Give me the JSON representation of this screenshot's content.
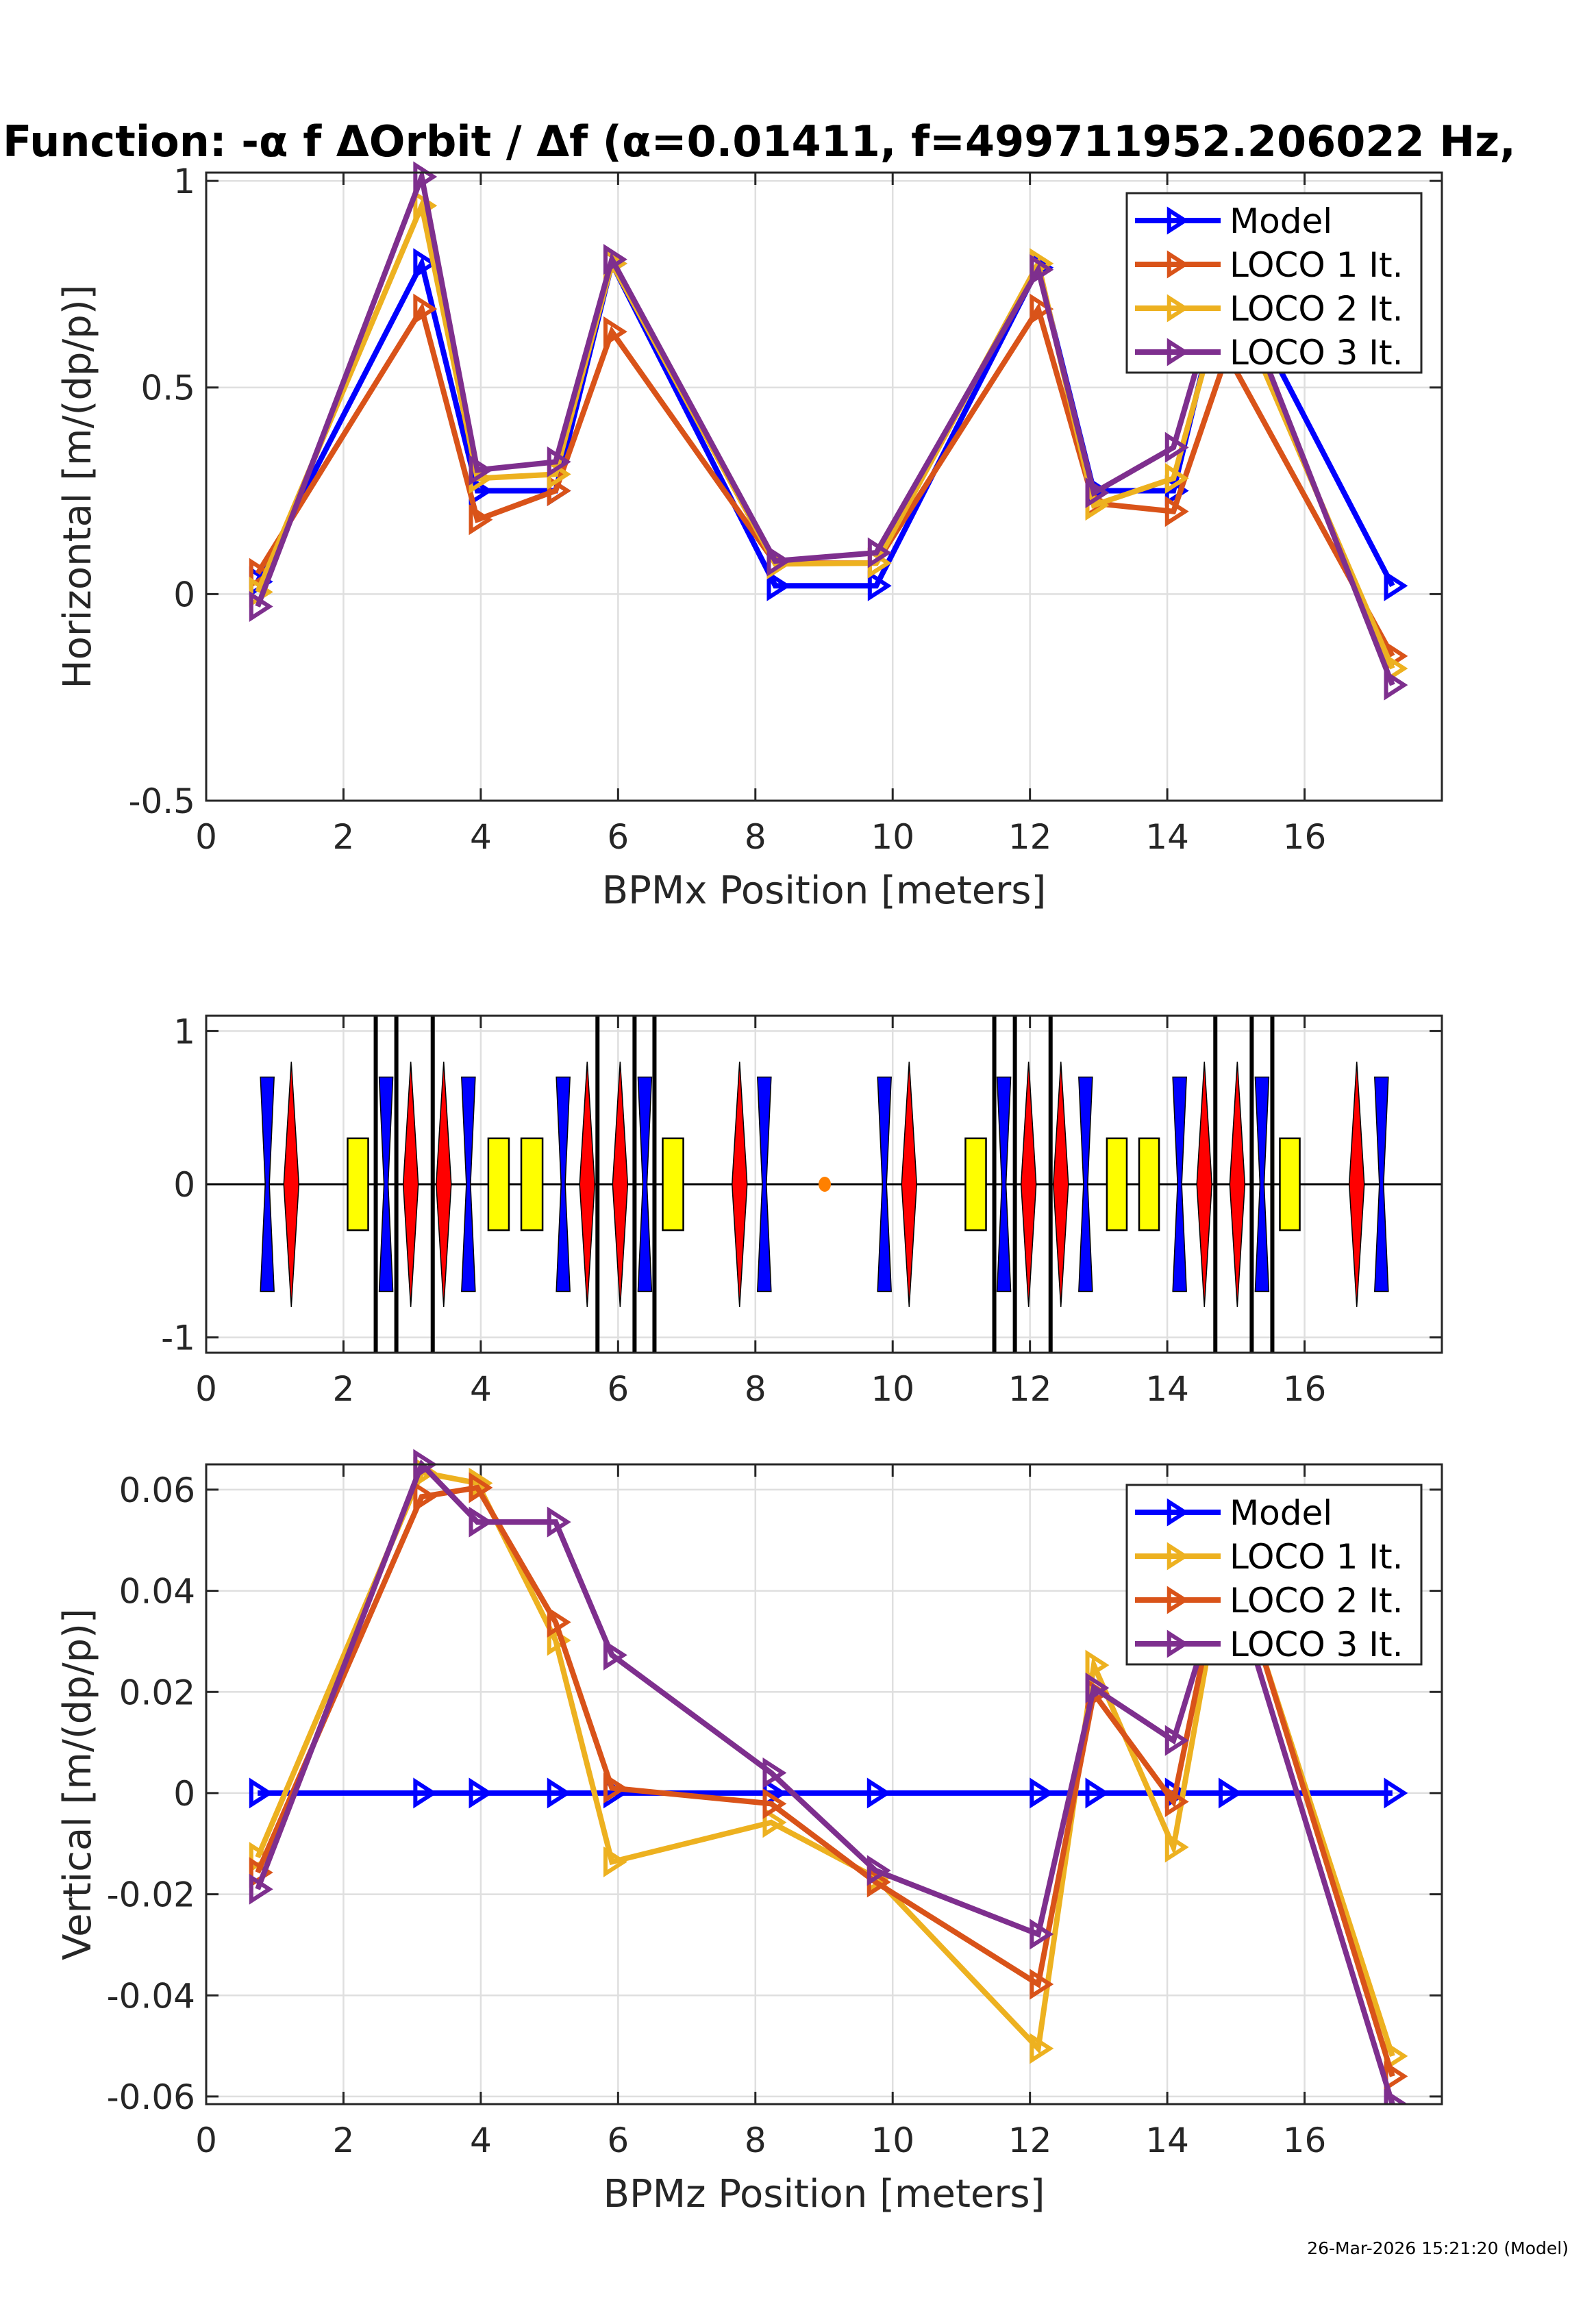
{
  "title": "Function: -α f ΔOrbit / Δf  (α=0.01411, f=499711952.206022 Hz,",
  "timestamp": "26-Mar-2026 15:21:20 (Model)",
  "chart_data": [
    {
      "type": "line",
      "id": "horizontal",
      "title": "",
      "xlabel": "BPMx Position [meters]",
      "ylabel": "Horizontal [m/(dp/p)]",
      "xlim": [
        0,
        18
      ],
      "ylim": [
        -0.5,
        1.02
      ],
      "xticks": [
        0,
        2,
        4,
        6,
        8,
        10,
        12,
        14,
        16
      ],
      "xtick_labels": [
        "0",
        "2",
        "4",
        "6",
        "8",
        "10",
        "12",
        "14",
        "16"
      ],
      "yticks": [
        -0.5,
        0,
        0.5,
        1
      ],
      "ytick_labels": [
        "-0.5",
        "0",
        "0.5",
        "1"
      ],
      "grid": true,
      "marker": "triangle-right",
      "legend": {
        "placement": "top-right",
        "entries": [
          "Model",
          "LOCO 1 It.",
          "LOCO 2 It.",
          "LOCO 3 It."
        ]
      },
      "x": [
        0.75,
        3.14,
        3.95,
        5.09,
        5.91,
        8.29,
        9.76,
        12.12,
        12.93,
        14.09,
        14.87,
        17.28
      ],
      "series": [
        {
          "name": "Model",
          "color": "#0000ff",
          "values": [
            0.03,
            0.8,
            0.25,
            0.25,
            0.8,
            0.02,
            0.02,
            0.79,
            0.25,
            0.25,
            0.79,
            0.02
          ]
        },
        {
          "name": "LOCO 1 It.",
          "color": "#d95319",
          "values": [
            0.05,
            0.69,
            0.18,
            0.25,
            0.635,
            0.075,
            0.075,
            0.69,
            0.22,
            0.2,
            0.58,
            -0.15
          ]
        },
        {
          "name": "LOCO 2 It.",
          "color": "#edb120",
          "values": [
            0.005,
            0.94,
            0.28,
            0.29,
            0.8,
            0.073,
            0.075,
            0.8,
            0.215,
            0.28,
            0.75,
            -0.18
          ]
        },
        {
          "name": "LOCO 3 It.",
          "color": "#7e2f8e",
          "values": [
            -0.03,
            1.01,
            0.3,
            0.32,
            0.81,
            0.08,
            0.1,
            0.785,
            0.245,
            0.355,
            0.8,
            -0.22
          ]
        }
      ]
    },
    {
      "type": "diagram",
      "id": "lattice",
      "xlim": [
        0,
        18
      ],
      "ylim": [
        -1.1,
        1.1
      ],
      "xticks": [
        0,
        2,
        4,
        6,
        8,
        10,
        12,
        14,
        16
      ],
      "xtick_labels": [
        "0",
        "2",
        "4",
        "6",
        "8",
        "10",
        "12",
        "14",
        "16"
      ],
      "yticks": [
        -1,
        0,
        1
      ],
      "ytick_labels": [
        "-1",
        "0",
        "1"
      ],
      "grid": true,
      "colors": {
        "focusing_quad": "#ff0000",
        "defocusing_quad": "#0000ff",
        "bend": "#ffff00",
        "marker": "#ff8000",
        "corrector": "#000000"
      },
      "defocusing_quads": [
        0.89,
        2.62,
        3.82,
        5.2,
        6.39,
        8.13,
        9.88,
        11.62,
        12.81,
        14.18,
        15.38,
        17.12
      ],
      "focusing_quads": [
        1.24,
        2.98,
        3.46,
        5.55,
        6.03,
        7.77,
        10.24,
        11.98,
        12.45,
        14.54,
        15.02,
        16.76
      ],
      "bends": [
        [
          2.06,
          2.36
        ],
        [
          4.11,
          4.41
        ],
        [
          4.59,
          4.9
        ],
        [
          6.65,
          6.95
        ],
        [
          11.06,
          11.36
        ],
        [
          13.12,
          13.41
        ],
        [
          13.59,
          13.88
        ],
        [
          15.64,
          15.93
        ]
      ],
      "correctors": [
        2.47,
        2.77,
        3.3,
        5.7,
        6.24,
        6.53,
        11.48,
        11.78,
        12.3,
        14.7,
        15.23,
        15.53
      ],
      "markers": [
        9.01
      ],
      "quad_half_height": 0.7,
      "focusing_half_height": 0.8,
      "bend_half_height": 0.3
    },
    {
      "type": "line",
      "id": "vertical",
      "title": "",
      "xlabel": "BPMz Position [meters]",
      "ylabel": "Vertical [m/(dp/p)]",
      "xlim": [
        0,
        18
      ],
      "ylim": [
        -0.0615,
        0.065
      ],
      "xticks": [
        0,
        2,
        4,
        6,
        8,
        10,
        12,
        14,
        16
      ],
      "xtick_labels": [
        "0",
        "2",
        "4",
        "6",
        "8",
        "10",
        "12",
        "14",
        "16"
      ],
      "yticks": [
        -0.06,
        -0.04,
        -0.02,
        0,
        0.02,
        0.04,
        0.06
      ],
      "ytick_labels": [
        "-0.06",
        "-0.04",
        "-0.02",
        "0",
        "0.02",
        "0.04",
        "0.06"
      ],
      "grid": true,
      "marker": "triangle-right",
      "legend": {
        "placement": "top-right",
        "entries": [
          "Model",
          "LOCO 1 It.",
          "LOCO 2 It.",
          "LOCO 3 It."
        ]
      },
      "x": [
        0.75,
        3.14,
        3.95,
        5.09,
        5.91,
        8.23,
        9.75,
        12.12,
        12.93,
        14.09,
        14.87,
        17.28
      ],
      "series": [
        {
          "name": "Model",
          "color": "#0000ff",
          "values": [
            0,
            0,
            0,
            0,
            0,
            0,
            0,
            0,
            0,
            0,
            0,
            0
          ]
        },
        {
          "name": "LOCO 1 It.",
          "color": "#edb120",
          "values": [
            -0.0127,
            0.0634,
            0.0613,
            0.0302,
            -0.0136,
            -0.0058,
            -0.0167,
            -0.0505,
            0.0253,
            -0.0107,
            0.049,
            -0.052
          ]
        },
        {
          "name": "LOCO 2 It.",
          "color": "#d95319",
          "values": [
            -0.0157,
            0.0586,
            0.0604,
            0.0338,
            0.001,
            -0.0021,
            -0.0176,
            -0.0378,
            0.0197,
            -0.0017,
            0.05,
            -0.056
          ]
        },
        {
          "name": "LOCO 3 It.",
          "color": "#7e2f8e",
          "values": [
            -0.019,
            0.065,
            0.0536,
            0.0536,
            0.0273,
            0.004,
            -0.0153,
            -0.0279,
            0.0208,
            0.0104,
            0.045,
            -0.0615
          ]
        }
      ]
    }
  ]
}
